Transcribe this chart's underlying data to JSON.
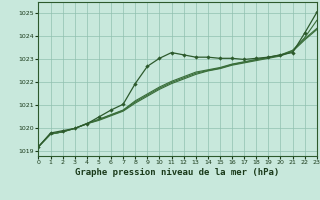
{
  "title": "Graphe pression niveau de la mer (hPa)",
  "background_color": "#c8e8dc",
  "plot_bg_color": "#c8e8dc",
  "grid_color": "#90c0b0",
  "line_color_main": "#2d5a2d",
  "line_color_smooth": "#3a6e3a",
  "ylim": [
    1018.8,
    1025.5
  ],
  "xlim": [
    0,
    23
  ],
  "yticks": [
    1019,
    1020,
    1021,
    1022,
    1023,
    1024,
    1025
  ],
  "xticks": [
    0,
    1,
    2,
    3,
    4,
    5,
    6,
    7,
    8,
    9,
    10,
    11,
    12,
    13,
    14,
    15,
    16,
    17,
    18,
    19,
    20,
    21,
    22,
    23
  ],
  "series_jagged": [
    1019.2,
    1019.8,
    1019.9,
    1020.0,
    1020.2,
    1020.5,
    1020.8,
    1021.05,
    1021.95,
    1022.7,
    1023.05,
    1023.3,
    1023.2,
    1023.1,
    1023.1,
    1023.05,
    1023.05,
    1023.0,
    1023.05,
    1023.1,
    1023.2,
    1023.3,
    1024.15,
    1025.05
  ],
  "series_smooth1": [
    1019.2,
    1019.75,
    1019.85,
    1020.0,
    1020.2,
    1020.35,
    1020.55,
    1020.75,
    1021.1,
    1021.4,
    1021.7,
    1021.95,
    1022.15,
    1022.35,
    1022.5,
    1022.6,
    1022.75,
    1022.85,
    1022.95,
    1023.05,
    1023.15,
    1023.35,
    1023.85,
    1024.3
  ],
  "series_smooth2": [
    1019.2,
    1019.75,
    1019.85,
    1020.0,
    1020.2,
    1020.38,
    1020.58,
    1020.78,
    1021.15,
    1021.45,
    1021.75,
    1022.0,
    1022.2,
    1022.4,
    1022.52,
    1022.62,
    1022.78,
    1022.88,
    1022.98,
    1023.08,
    1023.18,
    1023.38,
    1023.9,
    1024.35
  ],
  "series_smooth3": [
    1019.2,
    1019.75,
    1019.85,
    1020.0,
    1020.22,
    1020.4,
    1020.6,
    1020.8,
    1021.2,
    1021.5,
    1021.8,
    1022.05,
    1022.25,
    1022.45,
    1022.55,
    1022.65,
    1022.8,
    1022.9,
    1023.0,
    1023.1,
    1023.2,
    1023.4,
    1023.95,
    1024.7
  ]
}
